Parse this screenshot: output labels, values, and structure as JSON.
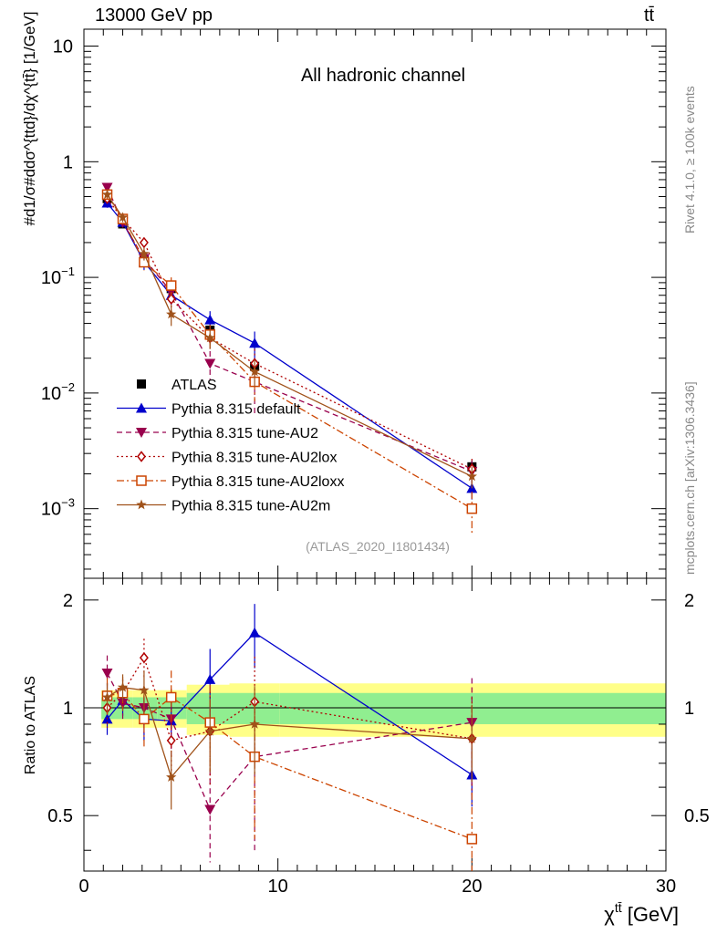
{
  "header": {
    "energy": "13000 GeV pp",
    "process": "tt̄"
  },
  "side_labels": {
    "rivet": "Rivet 4.1.0, ≥ 100k events",
    "mcplots": "mcplots.cern.ch [arXiv:1306.3436]"
  },
  "chart_data": {
    "type": "line",
    "title": "All hadronic channel",
    "analysis_id": "(ATLAS_2020_I1801434)",
    "xlabel": "χtt̄ [GeV]",
    "ylabel": "#d1/σ#ddσ^{ttd}/dχ^{tt̄} [1/GeV]",
    "ratio_ylabel": "Ratio to ATLAS",
    "xlim": [
      0,
      30
    ],
    "ylim": [
      0.00025,
      14
    ],
    "yscale": "log",
    "ratio_ylim": [
      0.35,
      2.3
    ],
    "ratio_yscale": "log",
    "x_ticks": [
      "0",
      "10",
      "20",
      "30"
    ],
    "y_ticks": [
      "10",
      "1",
      "10−1",
      "10−2",
      "10−3"
    ],
    "ratio_ticks": [
      "2",
      "1",
      "0.5"
    ],
    "x": [
      1.2,
      2.0,
      3.1,
      4.5,
      6.5,
      8.8,
      20.0
    ],
    "x_edges": [
      0.9,
      1.6,
      2.5,
      3.8,
      5.3,
      7.5,
      10.1,
      30.0
    ],
    "band_inner": [
      0.07,
      0.07,
      0.07,
      0.07,
      0.1,
      0.1,
      0.1
    ],
    "band_outer": [
      0.12,
      0.12,
      0.12,
      0.12,
      0.16,
      0.17,
      0.17
    ],
    "series": [
      {
        "name": "ATLAS",
        "style": "data",
        "color": "#000000",
        "marker": "square",
        "values": [
          0.48,
          0.29,
          0.145,
          0.08,
          0.035,
          0.017,
          0.0023
        ],
        "err_up": [
          0.03,
          0.015,
          0.01,
          0.008,
          0.004,
          0.002,
          0.0003
        ],
        "err_down": [
          0.03,
          0.015,
          0.01,
          0.008,
          0.004,
          0.002,
          0.0003
        ]
      },
      {
        "name": "Pythia 8.315 default",
        "style": "solid",
        "color": "#0000cc",
        "marker": "triangle-up",
        "values": [
          0.44,
          0.3,
          0.136,
          0.07,
          0.043,
          0.027,
          0.0015
        ],
        "err_up": [
          0.04,
          0.03,
          0.02,
          0.012,
          0.008,
          0.007,
          0.0003
        ],
        "err_down": [
          0.04,
          0.03,
          0.02,
          0.012,
          0.008,
          0.007,
          0.0003
        ]
      },
      {
        "name": "Pythia 8.315 tune-AU2",
        "style": "dash",
        "color": "#99004d",
        "marker": "triangle-down",
        "values": [
          0.6,
          0.3,
          0.145,
          0.075,
          0.018,
          0.0125,
          0.0021
        ],
        "err_up": [
          0.05,
          0.03,
          0.025,
          0.015,
          0.005,
          0.006,
          0.0005
        ],
        "err_down": [
          0.05,
          0.03,
          0.025,
          0.015,
          0.005,
          0.006,
          0.0005
        ]
      },
      {
        "name": "Pythia 8.315 tune-AU2lox",
        "style": "dot",
        "color": "#b00000",
        "marker": "diamond-open",
        "values": [
          0.48,
          0.32,
          0.2,
          0.065,
          0.03,
          0.018,
          0.0022
        ],
        "err_up": [
          0.04,
          0.03,
          0.02,
          0.01,
          0.006,
          0.006,
          0.0005
        ],
        "err_down": [
          0.04,
          0.03,
          0.02,
          0.01,
          0.006,
          0.006,
          0.0005
        ]
      },
      {
        "name": "Pythia 8.315 tune-AU2loxx",
        "style": "dashdot",
        "color": "#cc4400",
        "marker": "square-open",
        "values": [
          0.52,
          0.32,
          0.135,
          0.085,
          0.032,
          0.0125,
          0.001
        ],
        "err_up": [
          0.05,
          0.03,
          0.02,
          0.015,
          0.007,
          0.004,
          0.0004
        ],
        "err_down": [
          0.05,
          0.03,
          0.02,
          0.015,
          0.007,
          0.004,
          0.0004
        ]
      },
      {
        "name": "Pythia 8.315 tune-AU2m",
        "style": "solid",
        "color": "#a0521a",
        "marker": "star",
        "values": [
          0.52,
          0.33,
          0.16,
          0.048,
          0.03,
          0.0153,
          0.0019
        ],
        "err_up": [
          0.04,
          0.03,
          0.02,
          0.01,
          0.006,
          0.004,
          0.0004
        ],
        "err_down": [
          0.04,
          0.03,
          0.02,
          0.01,
          0.006,
          0.004,
          0.0004
        ]
      }
    ],
    "ratio_series": [
      {
        "name": "Pythia 8.315 default",
        "values": [
          0.93,
          1.05,
          0.93,
          0.92,
          1.2,
          1.62,
          0.65
        ],
        "err": [
          0.09,
          0.1,
          0.12,
          0.12,
          0.26,
          0.33,
          0.12
        ]
      },
      {
        "name": "Pythia 8.315 tune-AU2",
        "values": [
          1.25,
          1.03,
          1.0,
          0.93,
          0.52,
          0.73,
          0.91
        ],
        "err": [
          0.15,
          0.12,
          0.15,
          0.2,
          0.15,
          0.33,
          0.3
        ]
      },
      {
        "name": "Pythia 8.315 tune-AU2lox",
        "values": [
          1.0,
          1.1,
          1.38,
          0.81,
          0.86,
          1.04,
          0.82
        ],
        "err": [
          0.12,
          0.1,
          0.18,
          0.15,
          0.25,
          0.35,
          0.25
        ]
      },
      {
        "name": "Pythia 8.315 tune-AU2loxx",
        "values": [
          1.08,
          1.1,
          0.93,
          1.07,
          0.91,
          0.73,
          0.43
        ],
        "err": [
          0.13,
          0.12,
          0.15,
          0.2,
          0.25,
          0.3,
          0.15
        ]
      },
      {
        "name": "Pythia 8.315 tune-AU2m",
        "values": [
          1.07,
          1.14,
          1.12,
          0.64,
          0.86,
          0.9,
          0.82
        ],
        "err": [
          0.1,
          0.1,
          0.15,
          0.12,
          0.2,
          0.25,
          0.2
        ]
      }
    ]
  }
}
